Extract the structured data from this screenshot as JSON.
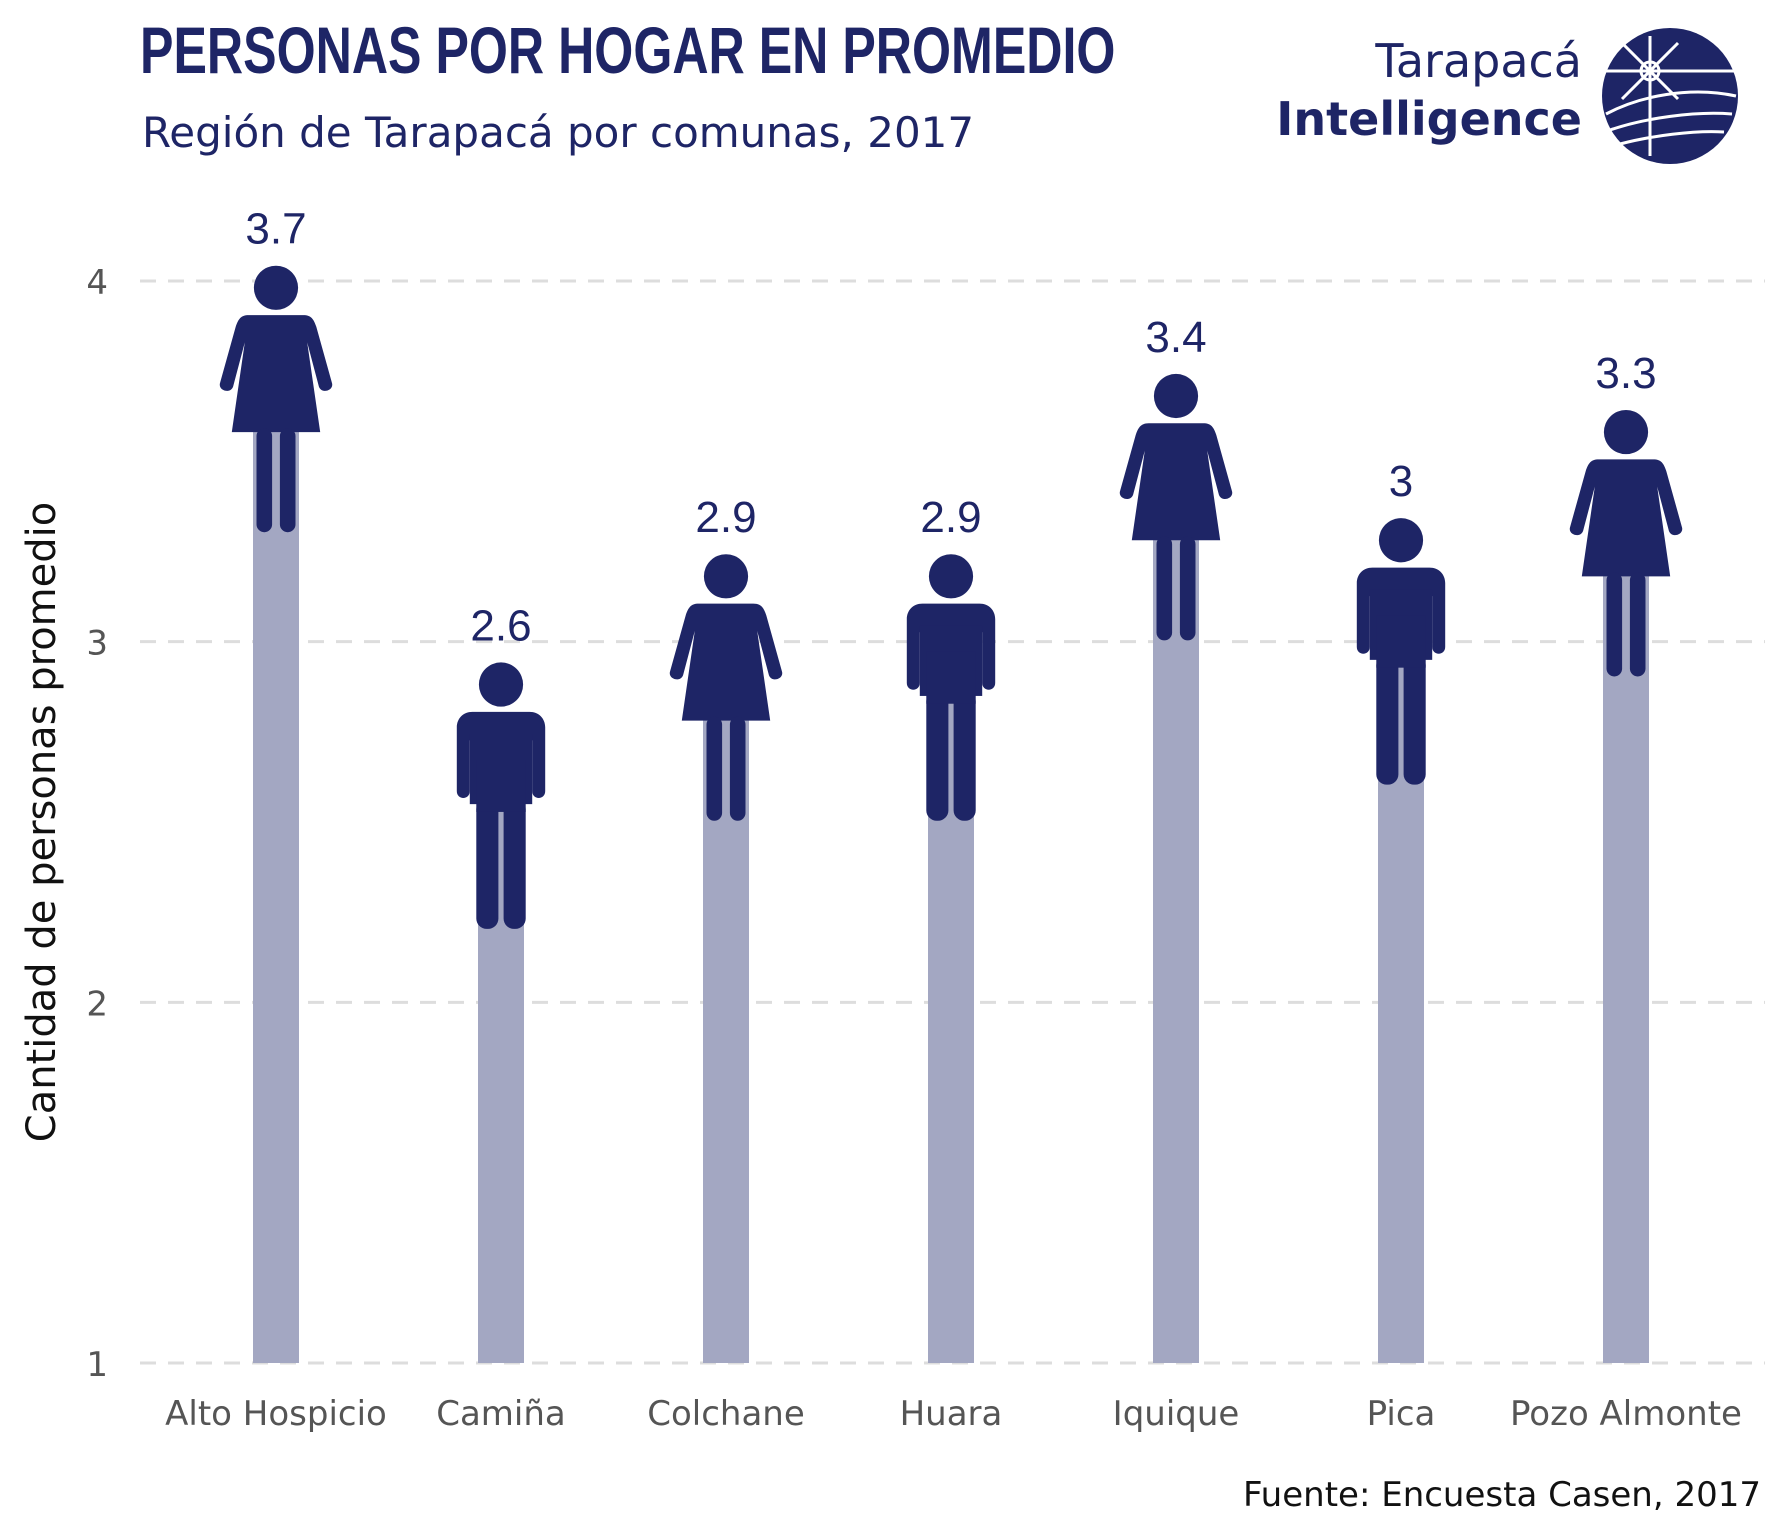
{
  "chart_data": {
    "type": "bar",
    "title": "PERSONAS POR HOGAR EN PROMEDIO",
    "subtitle": "Región de Tarapacá por comunas, 2017",
    "xlabel": "",
    "ylabel": "Cantidad de personas promedio",
    "ylim": [
      1,
      4
    ],
    "yticks": [
      "1",
      "2",
      "3",
      "4"
    ],
    "categories": [
      "Alto Hospicio",
      "Camiña",
      "Colchane",
      "Huara",
      "Iquique",
      "Pica",
      "Pozo Almonte"
    ],
    "values": [
      3.7,
      2.6,
      2.9,
      2.9,
      3.4,
      3.0,
      3.3
    ],
    "value_labels": [
      "3.7",
      "2.6",
      "2.9",
      "2.9",
      "3.4",
      "3",
      "3.3"
    ],
    "icons": [
      "female-icon",
      "male-icon",
      "female-icon",
      "male-icon",
      "female-icon",
      "male-icon",
      "female-icon"
    ],
    "grid": "horizontal-dashed",
    "source": "Fuente: Encuesta Casen, 2017"
  },
  "logo": {
    "line1": "Tarapacá",
    "line2": "Intelligence",
    "icon": "tarapaca-intelligence-logo-icon"
  },
  "colors": {
    "primary": "#1e2566",
    "bar": "#a3a7c2",
    "grid": "#dddddd",
    "axis_text": "#555555"
  }
}
